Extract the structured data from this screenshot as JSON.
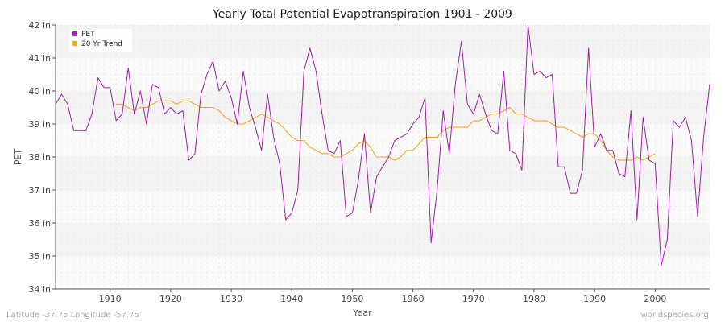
{
  "chart_data": {
    "type": "line",
    "title": "Yearly Total Potential Evapotranspiration 1901 - 2009",
    "xlabel": "Year",
    "ylabel": "PET",
    "xlim": [
      1901,
      2009
    ],
    "ylim": [
      34,
      42
    ],
    "x_ticks": [
      1910,
      1920,
      1930,
      1940,
      1950,
      1960,
      1970,
      1980,
      1990,
      2000
    ],
    "y_ticks": [
      {
        "value": 34,
        "label": "34 in"
      },
      {
        "value": 35,
        "label": "35 in"
      },
      {
        "value": 36,
        "label": "36 in"
      },
      {
        "value": 37,
        "label": "37 in"
      },
      {
        "value": 38,
        "label": "38 in"
      },
      {
        "value": 39,
        "label": "39 in"
      },
      {
        "value": 40,
        "label": "40 in"
      },
      {
        "value": 41,
        "label": "41 in"
      },
      {
        "value": 42,
        "label": "42 in"
      }
    ],
    "grid": true,
    "legend_position": "top-left",
    "series": [
      {
        "name": "PET",
        "color": "#a020a8",
        "x_start": 1901,
        "values": [
          39.6,
          39.9,
          39.6,
          38.8,
          38.8,
          38.8,
          39.3,
          40.4,
          40.1,
          40.1,
          39.1,
          39.3,
          40.7,
          39.3,
          40.0,
          39.0,
          40.2,
          40.1,
          39.3,
          39.5,
          39.3,
          39.4,
          37.9,
          38.1,
          39.9,
          40.5,
          40.9,
          40.0,
          40.3,
          39.8,
          39.0,
          40.6,
          39.5,
          38.9,
          38.2,
          39.9,
          38.6,
          37.8,
          36.1,
          36.3,
          37.0,
          40.6,
          41.3,
          40.6,
          39.3,
          38.2,
          38.1,
          38.5,
          36.2,
          36.3,
          37.3,
          38.7,
          36.3,
          37.4,
          37.7,
          38.0,
          38.5,
          38.6,
          38.7,
          39.0,
          39.2,
          39.8,
          35.4,
          37.0,
          39.4,
          38.1,
          40.2,
          41.5,
          39.6,
          39.3,
          39.9,
          39.3,
          38.8,
          38.7,
          40.6,
          38.2,
          38.1,
          37.6,
          42.0,
          40.5,
          40.6,
          40.4,
          40.5,
          37.7,
          37.7,
          36.9,
          36.9,
          37.6,
          41.3,
          38.3,
          38.7,
          38.2,
          38.2,
          37.5,
          37.4,
          39.4,
          36.1,
          39.2,
          37.9,
          37.8,
          34.7,
          35.5,
          39.1,
          38.9,
          39.2,
          38.5,
          36.2,
          38.6,
          40.2
        ]
      },
      {
        "name": "20 Yr Trend",
        "color": "#f5a623",
        "x_start": 1911,
        "values": [
          39.6,
          39.6,
          39.5,
          39.4,
          39.5,
          39.5,
          39.6,
          39.7,
          39.7,
          39.7,
          39.6,
          39.7,
          39.7,
          39.6,
          39.5,
          39.5,
          39.5,
          39.4,
          39.2,
          39.1,
          39.0,
          39.0,
          39.1,
          39.2,
          39.3,
          39.2,
          39.1,
          39.0,
          38.8,
          38.6,
          38.5,
          38.5,
          38.3,
          38.2,
          38.1,
          38.1,
          38.0,
          38.0,
          38.1,
          38.2,
          38.4,
          38.5,
          38.3,
          38.0,
          38.0,
          38.0,
          37.9,
          38.0,
          38.2,
          38.2,
          38.4,
          38.6,
          38.6,
          38.6,
          38.8,
          38.9,
          38.9,
          38.9,
          38.9,
          39.1,
          39.1,
          39.2,
          39.3,
          39.3,
          39.4,
          39.5,
          39.3,
          39.3,
          39.2,
          39.1,
          39.1,
          39.1,
          39.0,
          38.9,
          38.9,
          38.8,
          38.7,
          38.6,
          38.7,
          38.7,
          38.5,
          38.2,
          38.0,
          37.9,
          37.9,
          37.9,
          38.0,
          37.9,
          38.0,
          38.1
        ]
      }
    ]
  },
  "footer": {
    "left": "Latitude -37.75 Longitude -57.75",
    "right": "worldspecies.org"
  }
}
